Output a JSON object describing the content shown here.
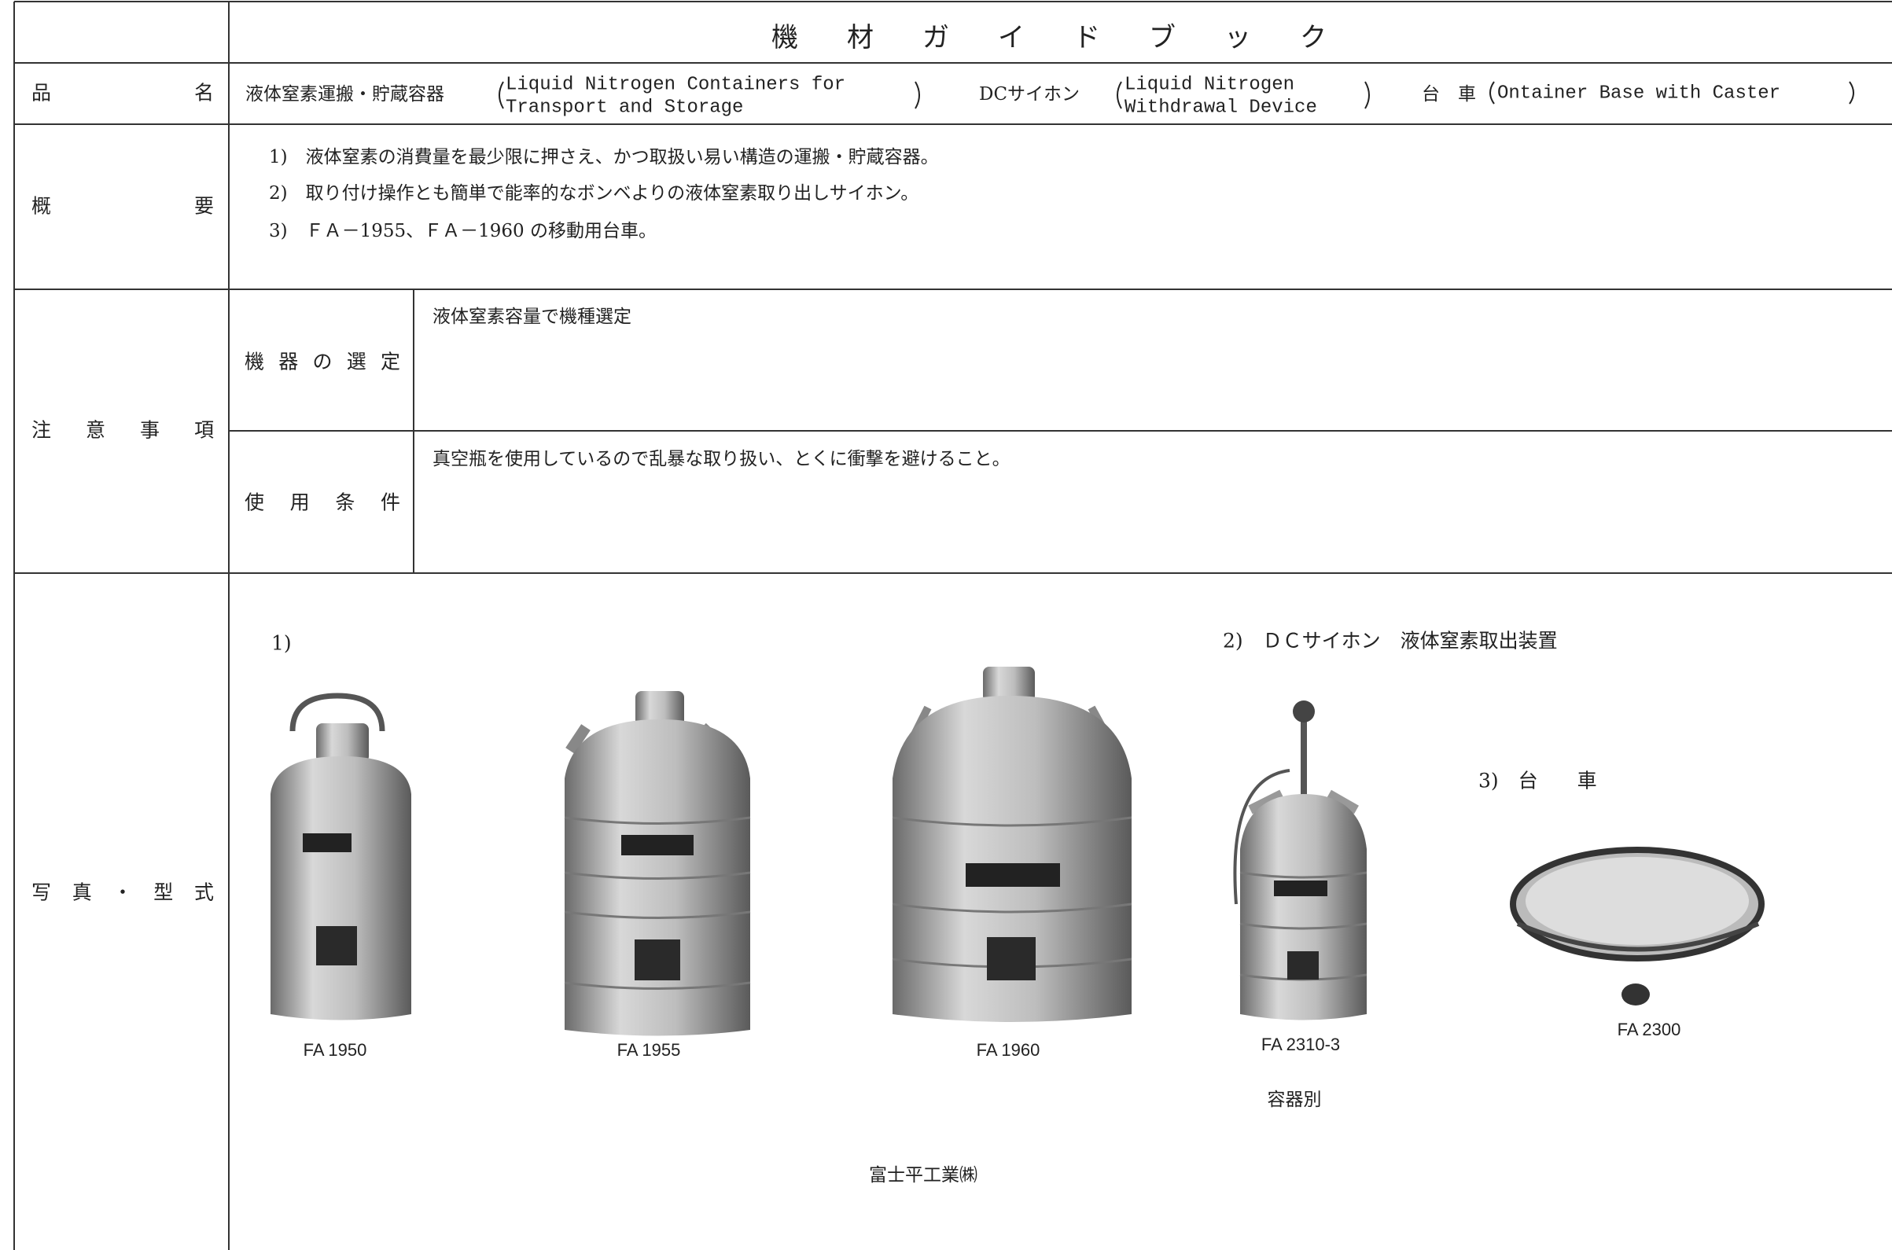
{
  "header": {
    "title": "機材ガイドブック"
  },
  "product": {
    "label": "品名",
    "items": [
      {
        "ja": "液体窒素運搬・貯蔵容器",
        "en": [
          "Liquid Nitrogen Containers for",
          "Transport and Storage"
        ]
      },
      {
        "ja": "DCサイホン",
        "en": [
          "Liquid Nitrogen",
          "Withdrawal Device"
        ]
      },
      {
        "ja": "台　車",
        "en": [
          "Ontainer Base with Caster"
        ]
      }
    ]
  },
  "overview": {
    "label": "概要",
    "items": [
      "1)　液体窒素の消費量を最少限に押さえ、かつ取扱い易い構造の運搬・貯蔵容器。",
      "2)　取り付け操作とも簡単で能率的なボンベよりの液体窒素取り出しサイホン。",
      "3)　ＦＡ－1955、ＦＡ－1960 の移動用台車。"
    ]
  },
  "cautions": {
    "label": "注意事項",
    "rows": [
      {
        "label": "機器の選定",
        "text": "液体窒素容量で機種選定"
      },
      {
        "label": "使用条件",
        "text": "真空瓶を使用しているので乱暴な取り扱い、とくに衝撃を避けること。"
      }
    ]
  },
  "photos": {
    "label": "写真・型式",
    "group1": "1)",
    "group2": "2)　ＤＣサイホン　液体窒素取出装置",
    "group3": "3)　台　　車",
    "models": [
      "FA 1950",
      "FA 1955",
      "FA 1960",
      "FA 2310-3",
      "FA 2300"
    ],
    "note": "容器別",
    "maker": "富士平工業㈱"
  }
}
